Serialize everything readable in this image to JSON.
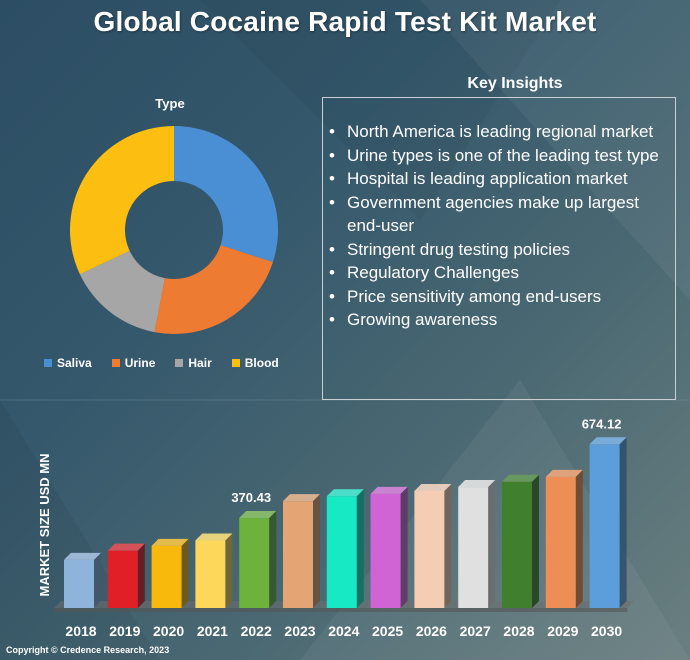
{
  "title": "Global Cocaine Rapid Test Kit  Market",
  "copyright": "Copyright © Credence Research, 2023",
  "donut": {
    "title": "Type",
    "segments": [
      {
        "name": "Saliva",
        "value": 30,
        "color": "#4a8fd4"
      },
      {
        "name": "Urine",
        "value": 23,
        "color": "#ee7b32"
      },
      {
        "name": "Hair",
        "value": 15,
        "color": "#a6a6a6"
      },
      {
        "name": "Blood",
        "value": 32,
        "color": "#fcbf11"
      }
    ]
  },
  "insights": {
    "title": "Key Insights",
    "items": [
      "North America is leading regional market",
      "Urine types is one of the leading test type",
      "Hospital is leading application market",
      "Government agencies make up largest end-user",
      "Stringent drug testing policies",
      "Regulatory Challenges",
      "Price sensitivity among end-users",
      "Growing awareness"
    ]
  },
  "chart_data": [
    {
      "type": "pie",
      "title": "Type",
      "categories": [
        "Saliva",
        "Urine",
        "Hair",
        "Blood"
      ],
      "values": [
        30,
        23,
        15,
        32
      ],
      "legend": "bottom"
    },
    {
      "type": "bar",
      "categories": [
        "2018",
        "2019",
        "2020",
        "2021",
        "2022",
        "2023",
        "2024",
        "2025",
        "2026",
        "2027",
        "2028",
        "2029",
        "2030"
      ],
      "values": [
        198,
        236,
        256,
        278,
        370.43,
        440,
        460,
        470,
        482,
        498,
        520,
        540,
        674.12
      ],
      "data_labels": {
        "2022": "370.43",
        "2030": "674.12"
      },
      "ylabel": "MARKET SIZE USD MN",
      "ylim": [
        0,
        700
      ],
      "colors": [
        "#8fb4dc",
        "#e01f26",
        "#f9b80c",
        "#fcd759",
        "#6cb23d",
        "#e4a474",
        "#17e9c5",
        "#d064d4",
        "#f4cdb4",
        "#e0e0e0",
        "#3f7f2d",
        "#ec8e56",
        "#5c9edc"
      ],
      "grid": false,
      "legend": "none"
    }
  ]
}
